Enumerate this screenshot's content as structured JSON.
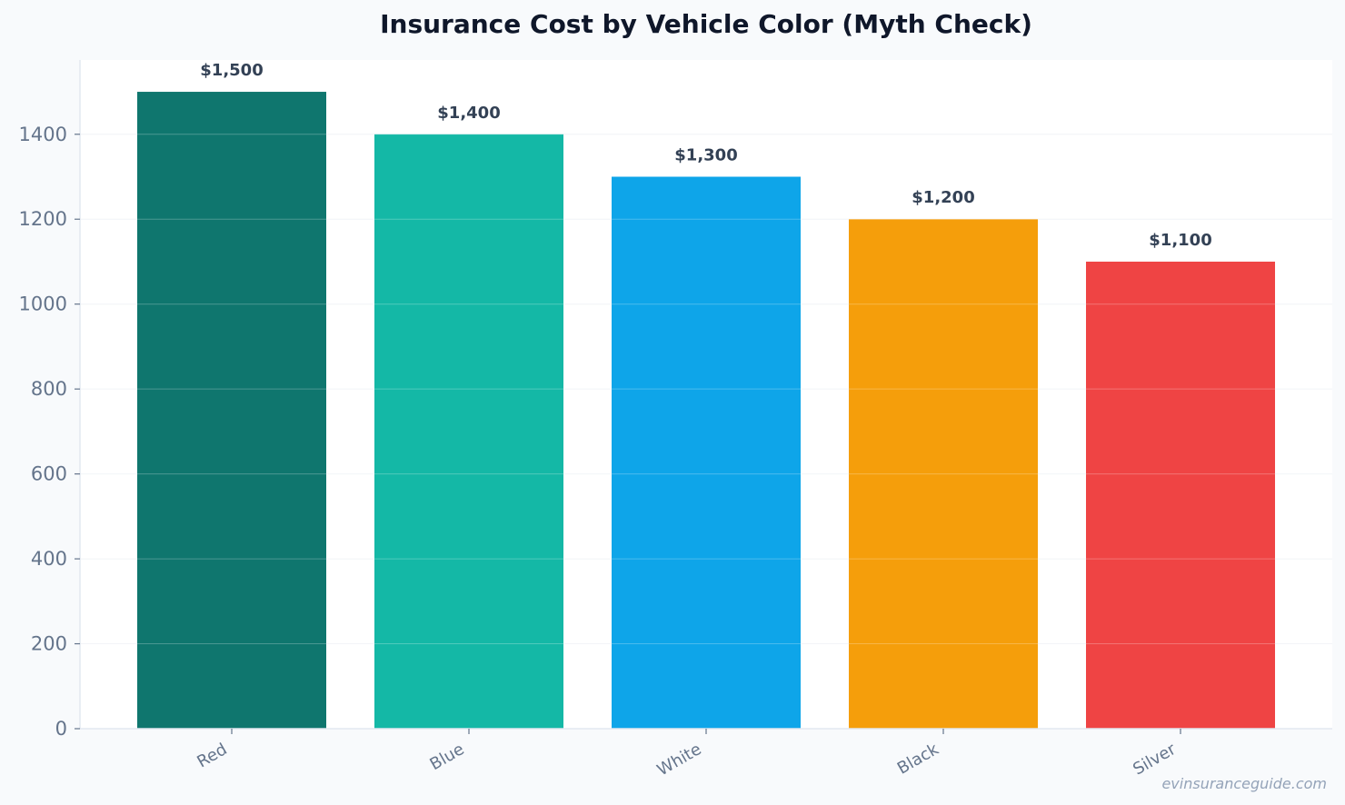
{
  "chart_data": {
    "type": "bar",
    "title": "Insurance Cost by Vehicle Color (Myth Check)",
    "xlabel": "",
    "ylabel": "",
    "categories": [
      "Red",
      "Blue",
      "White",
      "Black",
      "Silver"
    ],
    "values": [
      1500,
      1400,
      1300,
      1200,
      1100
    ],
    "value_labels": [
      "$1,500",
      "$1,400",
      "$1,300",
      "$1,200",
      "$1,100"
    ],
    "colors": [
      "#0f766e",
      "#14b8a6",
      "#0ea5e9",
      "#f59e0b",
      "#ef4444"
    ],
    "ylim": [
      0,
      1575
    ],
    "yticks": [
      0,
      200,
      400,
      600,
      800,
      1000,
      1200,
      1400
    ],
    "grid": true,
    "legend": "none"
  },
  "watermark": "evinsuranceguide.com"
}
